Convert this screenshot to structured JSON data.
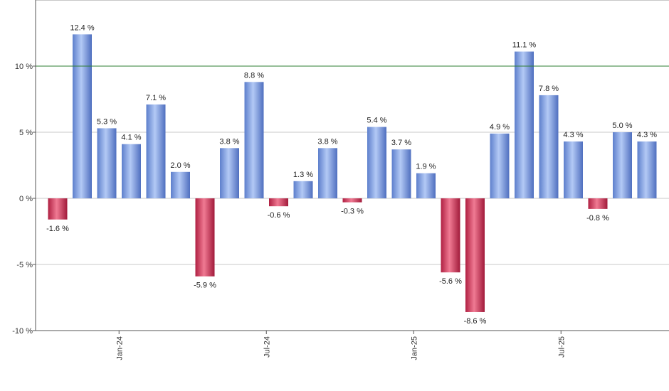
{
  "chart_data": {
    "type": "bar",
    "title": "",
    "xlabel": "",
    "ylabel": "",
    "ylim": [
      -10,
      12.4
    ],
    "y_ticks": [
      {
        "value": 10,
        "label": "10 %"
      },
      {
        "value": 5,
        "label": "5 %"
      },
      {
        "value": 0,
        "label": "0 %"
      },
      {
        "value": -5,
        "label": "-5 %"
      },
      {
        "value": -10,
        "label": "-10 %"
      }
    ],
    "reference_line": {
      "value": 10,
      "color": "#2e7d32"
    },
    "x_ticks": [
      {
        "after_index": 2,
        "label": "Jan-24"
      },
      {
        "after_index": 8,
        "label": "Jul-24"
      },
      {
        "after_index": 14,
        "label": "Jan-25"
      },
      {
        "after_index": 20,
        "label": "Jul-25"
      }
    ],
    "values": [
      -1.6,
      12.4,
      5.3,
      4.1,
      7.1,
      2.0,
      -5.9,
      3.8,
      8.8,
      -0.6,
      1.3,
      3.8,
      -0.3,
      5.4,
      3.7,
      1.9,
      -5.6,
      -8.6,
      4.9,
      11.1,
      7.8,
      4.3,
      -0.8,
      5.0,
      4.3
    ],
    "labels": [
      "-1.6 %",
      "12.4 %",
      "5.3 %",
      "4.1 %",
      "7.1 %",
      "2.0 %",
      "-5.9 %",
      "3.8 %",
      "8.8 %",
      "-0.6 %",
      "1.3 %",
      "3.8 %",
      "-0.3 %",
      "5.4 %",
      "3.7 %",
      "1.9 %",
      "-5.6 %",
      "-8.6 %",
      "4.9 %",
      "11.1 %",
      "7.8 %",
      "4.3 %",
      "-0.8 %",
      "5.0 %",
      "4.3 %"
    ],
    "colors": {
      "positive": "#7a9de0",
      "negative": "#c2334f",
      "grid": "#c8c8c8",
      "axis": "#555555"
    }
  }
}
